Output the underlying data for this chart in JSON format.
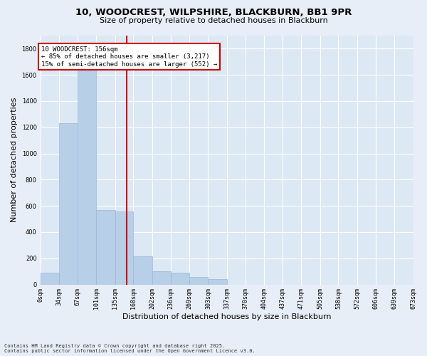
{
  "title_line1": "10, WOODCREST, WILPSHIRE, BLACKBURN, BB1 9PR",
  "title_line2": "Size of property relative to detached houses in Blackburn",
  "xlabel": "Distribution of detached houses by size in Blackburn",
  "ylabel": "Number of detached properties",
  "fig_bg_color": "#e8eef8",
  "ax_bg_color": "#dde8f5",
  "bar_color": "#b8cfe8",
  "bar_edge_color": "#99b8d8",
  "grid_color": "#ffffff",
  "vline_x": 156,
  "vline_color": "#cc0000",
  "annotation_text": "10 WOODCREST: 156sqm\n← 85% of detached houses are smaller (3,217)\n15% of semi-detached houses are larger (552) →",
  "annotation_box_ec": "#cc0000",
  "footer_line1": "Contains HM Land Registry data © Crown copyright and database right 2025.",
  "footer_line2": "Contains public sector information licensed under the Open Government Licence v3.0.",
  "bins": [
    0,
    34,
    67,
    101,
    135,
    168,
    202,
    236,
    269,
    303,
    337,
    370,
    404,
    437,
    471,
    505,
    538,
    572,
    606,
    639,
    673
  ],
  "counts": [
    90,
    1230,
    1690,
    570,
    560,
    215,
    100,
    90,
    60,
    42,
    0,
    0,
    0,
    0,
    0,
    0,
    0,
    0,
    0,
    0
  ],
  "ylim": [
    0,
    1900
  ],
  "yticks": [
    0,
    200,
    400,
    600,
    800,
    1000,
    1200,
    1400,
    1600,
    1800
  ]
}
